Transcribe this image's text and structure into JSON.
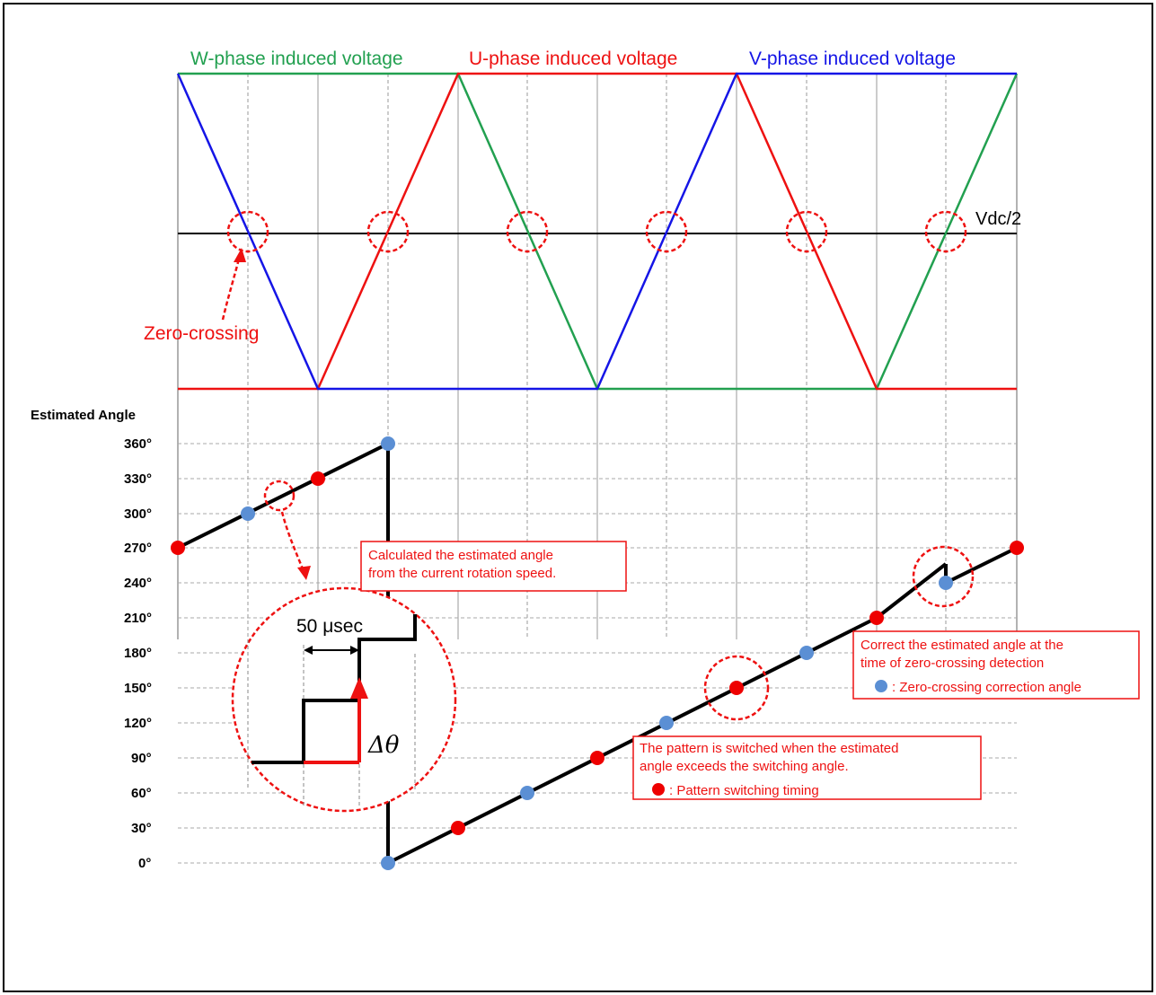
{
  "colors": {
    "w_phase": "#22a050",
    "u_phase": "#ee1111",
    "v_phase": "#1515e6",
    "angle_line": "#000000",
    "pattern_dot": "#ee0000",
    "correction_dot": "#5b8fd4",
    "callout": "#ee1111"
  },
  "phase_labels": {
    "w": "W-phase induced voltage",
    "u": "U-phase induced voltage",
    "v": "V-phase induced voltage"
  },
  "vdc_label": "Vdc/2",
  "zero_crossing_label": "Zero-crossing",
  "angle_axis": {
    "title": "Estimated Angle",
    "ticks": [
      "360°",
      "330°",
      "300°",
      "270°",
      "240°",
      "210°",
      "180°",
      "150°",
      "120°",
      "90°",
      "60°",
      "30°",
      "0°"
    ]
  },
  "callouts": {
    "calculated": [
      "Calculated the estimated angle",
      "from the current rotation speed."
    ],
    "correct": [
      "Correct the estimated angle at the",
      "time of zero-crossing detection"
    ],
    "correction_legend": ":  Zero-crossing correction angle",
    "pattern": [
      "The pattern is switched when the estimated",
      "angle exceeds the switching angle."
    ],
    "pattern_legend": ":  Pattern switching timing"
  },
  "zoom": {
    "step_label": "50 μsec",
    "delta_label": "Δθ"
  }
}
